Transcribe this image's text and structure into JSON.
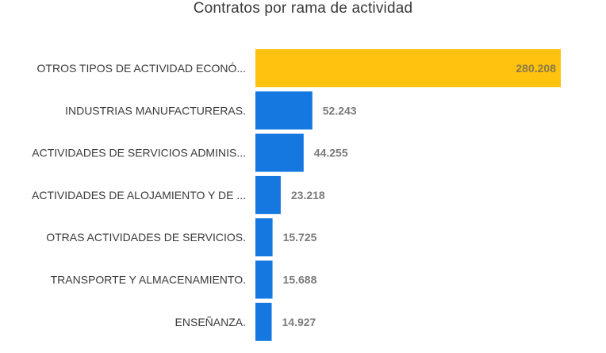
{
  "chart_data": {
    "type": "bar",
    "orientation": "horizontal",
    "title": "Contratos por rama de actividad",
    "categories": [
      "OTROS TIPOS DE ACTIVIDAD ECONÓ...",
      "INDUSTRIAS MANUFACTURERAS.",
      "ACTIVIDADES DE SERVICIOS ADMINIS...",
      "ACTIVIDADES DE ALOJAMIENTO Y DE ...",
      "OTRAS ACTIVIDADES DE SERVICIOS.",
      "TRANSPORTE Y ALMACENAMIENTO.",
      "ENSEÑANZA."
    ],
    "values": [
      280208,
      52243,
      44255,
      23218,
      15725,
      15688,
      14927
    ],
    "value_labels": [
      "280.208",
      "52.243",
      "44.255",
      "23.218",
      "15.725",
      "15.688",
      "14.927"
    ],
    "xlim": [
      0,
      280208
    ],
    "grid": false,
    "legend": "none",
    "colors": {
      "highlight": "#FFC20E",
      "default": "#1577E0",
      "label_on_highlight": "#8a7a4a",
      "label_default": "#7a7a7a"
    },
    "highlight_index": 0
  }
}
